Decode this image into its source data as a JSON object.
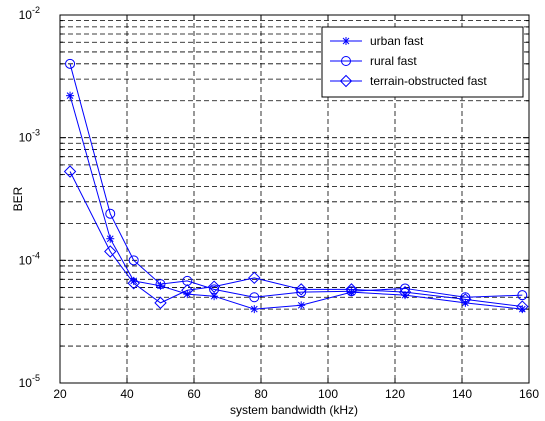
{
  "chart_data": {
    "type": "line",
    "title": "",
    "xlabel": "system bandwidth (kHz)",
    "ylabel": "BER",
    "xlim": [
      20,
      160
    ],
    "ylim": [
      1e-05,
      0.01
    ],
    "yscale": "log",
    "grid": true,
    "legend_position": "top-right",
    "x_ticks": [
      20,
      40,
      60,
      80,
      100,
      120,
      140,
      160
    ],
    "x_tick_labels": [
      "20",
      "40",
      "60",
      "80",
      "100",
      "120",
      "140",
      "160"
    ],
    "y_tick_labels": [
      {
        "base": "10",
        "exp": "-5",
        "value": 1e-05
      },
      {
        "base": "10",
        "exp": "-4",
        "value": 0.0001
      },
      {
        "base": "10",
        "exp": "-3",
        "value": 0.001
      },
      {
        "base": "10",
        "exp": "-2",
        "value": 0.01
      }
    ],
    "line_color": "#0000ff",
    "series": [
      {
        "name": "urban fast",
        "marker": "asterisk",
        "x": [
          23,
          35,
          42,
          50,
          58,
          66,
          78,
          92,
          107,
          123,
          141,
          158
        ],
        "y": [
          0.0022,
          0.00015,
          6.8e-05,
          6.2e-05,
          5.3e-05,
          5.1e-05,
          4e-05,
          4.3e-05,
          5.5e-05,
          5.2e-05,
          4.5e-05,
          4e-05
        ]
      },
      {
        "name": "rural fast",
        "marker": "circle",
        "x": [
          23,
          35,
          42,
          50,
          58,
          66,
          78,
          92,
          107,
          123,
          141,
          158
        ],
        "y": [
          0.004,
          0.00024,
          0.0001,
          6.4e-05,
          6.8e-05,
          5.8e-05,
          5e-05,
          5.5e-05,
          5.6e-05,
          5.9e-05,
          5e-05,
          5.2e-05
        ]
      },
      {
        "name": "terrain-obstructed fast",
        "marker": "diamond",
        "x": [
          23,
          35,
          42,
          50,
          58,
          66,
          78,
          92,
          107,
          123,
          141,
          158
        ],
        "y": [
          0.00053,
          0.000118,
          6.5e-05,
          4.5e-05,
          5.7e-05,
          6.1e-05,
          7.2e-05,
          5.8e-05,
          5.8e-05,
          5.5e-05,
          4.8e-05,
          4.2e-05
        ]
      }
    ]
  }
}
